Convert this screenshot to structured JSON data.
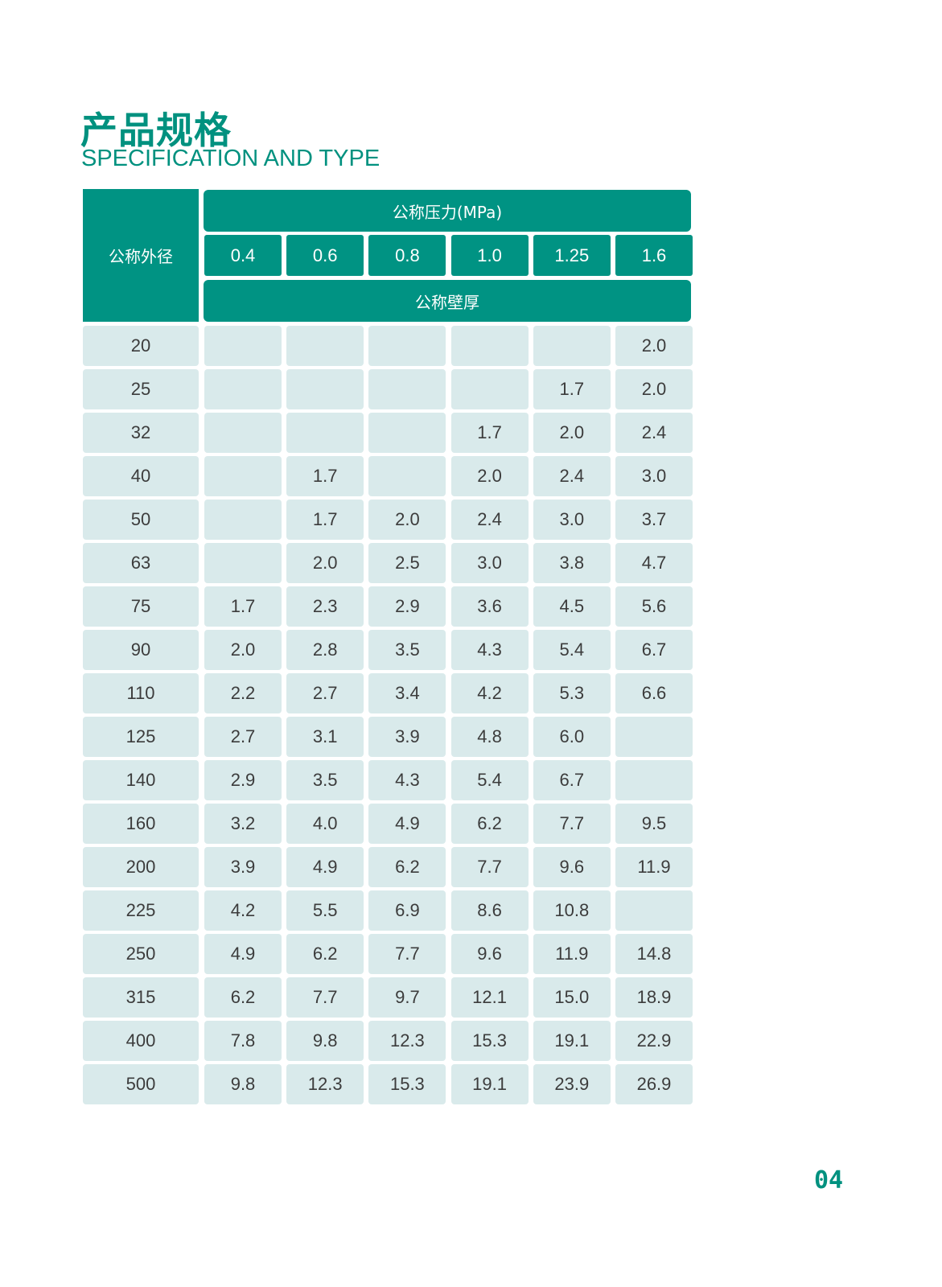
{
  "title_cn": "产品规格",
  "title_en": "SPECIFICATION AND TYPE",
  "table": {
    "row_header": "公称外径",
    "pressure_header": "公称压力(MPa)",
    "thickness_header": "公称壁厚",
    "pressures": [
      "0.4",
      "0.6",
      "0.8",
      "1.0",
      "1.25",
      "1.6"
    ],
    "rows": [
      {
        "od": "20",
        "values": [
          "",
          "",
          "",
          "",
          "",
          "2.0"
        ]
      },
      {
        "od": "25",
        "values": [
          "",
          "",
          "",
          "",
          "1.7",
          "2.0"
        ]
      },
      {
        "od": "32",
        "values": [
          "",
          "",
          "",
          "1.7",
          "2.0",
          "2.4"
        ]
      },
      {
        "od": "40",
        "values": [
          "",
          "1.7",
          "",
          "2.0",
          "2.4",
          "3.0"
        ]
      },
      {
        "od": "50",
        "values": [
          "",
          "1.7",
          "2.0",
          "2.4",
          "3.0",
          "3.7"
        ]
      },
      {
        "od": "63",
        "values": [
          "",
          "2.0",
          "2.5",
          "3.0",
          "3.8",
          "4.7"
        ]
      },
      {
        "od": "75",
        "values": [
          "1.7",
          "2.3",
          "2.9",
          "3.6",
          "4.5",
          "5.6"
        ]
      },
      {
        "od": "90",
        "values": [
          "2.0",
          "2.8",
          "3.5",
          "4.3",
          "5.4",
          "6.7"
        ]
      },
      {
        "od": "110",
        "values": [
          "2.2",
          "2.7",
          "3.4",
          "4.2",
          "5.3",
          "6.6"
        ]
      },
      {
        "od": "125",
        "values": [
          "2.7",
          "3.1",
          "3.9",
          "4.8",
          "6.0",
          ""
        ]
      },
      {
        "od": "140",
        "values": [
          "2.9",
          "3.5",
          "4.3",
          "5.4",
          "6.7",
          ""
        ]
      },
      {
        "od": "160",
        "values": [
          "3.2",
          "4.0",
          "4.9",
          "6.2",
          "7.7",
          "9.5"
        ]
      },
      {
        "od": "200",
        "values": [
          "3.9",
          "4.9",
          "6.2",
          "7.7",
          "9.6",
          "11.9"
        ]
      },
      {
        "od": "225",
        "values": [
          "4.2",
          "5.5",
          "6.9",
          "8.6",
          "10.8",
          ""
        ]
      },
      {
        "od": "250",
        "values": [
          "4.9",
          "6.2",
          "7.7",
          "9.6",
          "11.9",
          "14.8"
        ]
      },
      {
        "od": "315",
        "values": [
          "6.2",
          "7.7",
          "9.7",
          "12.1",
          "15.0",
          "18.9"
        ]
      },
      {
        "od": "400",
        "values": [
          "7.8",
          "9.8",
          "12.3",
          "15.3",
          "19.1",
          "22.9"
        ]
      },
      {
        "od": "500",
        "values": [
          "9.8",
          "12.3",
          "15.3",
          "19.1",
          "23.9",
          "26.9"
        ]
      }
    ]
  },
  "page_number": "04",
  "colors": {
    "accent": "#009383",
    "cell_bg": "#d9eaeb",
    "text": "#3c3c3c"
  }
}
